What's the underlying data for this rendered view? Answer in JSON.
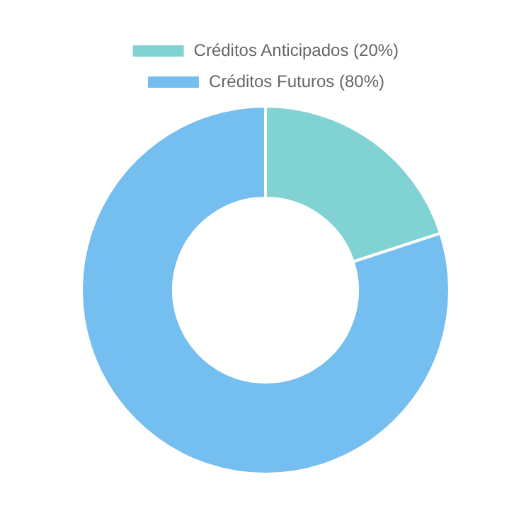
{
  "chart_data": {
    "type": "donut",
    "categories": [
      "Créditos Anticipados (20%)",
      "Créditos Futuros (80%)"
    ],
    "values": [
      20,
      80
    ],
    "colors": [
      "#81d3d3",
      "#74bef0"
    ],
    "legend": "top"
  }
}
